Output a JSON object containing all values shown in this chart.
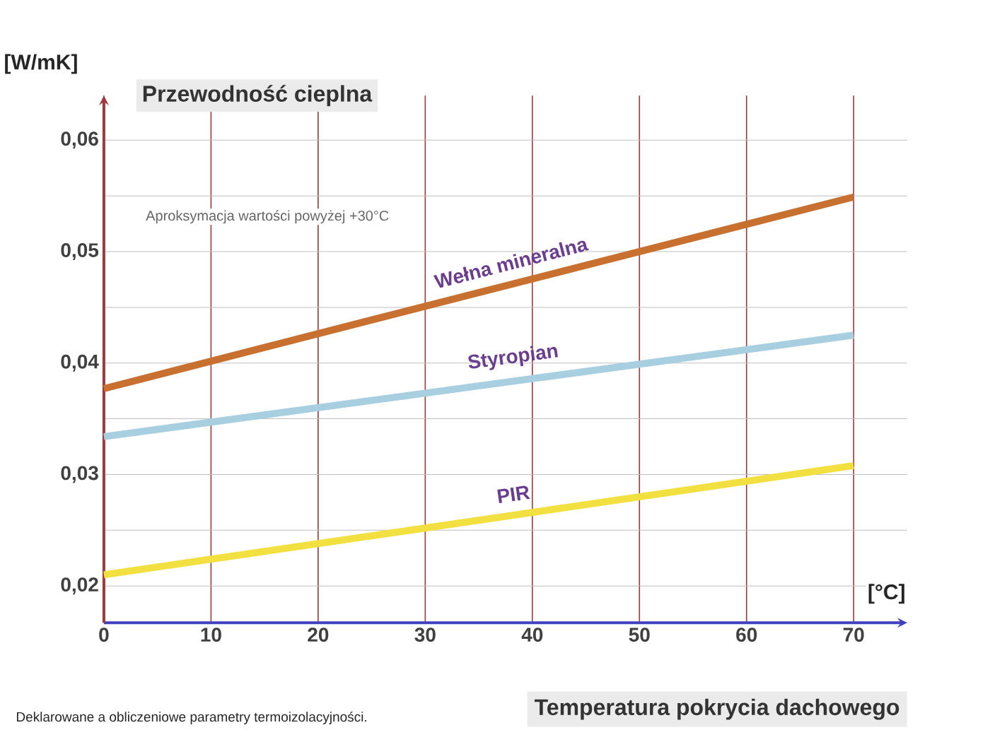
{
  "chart_data": {
    "type": "line",
    "ylabel": "Przewodność cieplna",
    "xlabel": "Temperatura pokrycia dachowego",
    "annotations": [
      "[W/mK]",
      "[°C]",
      "Aproksymacja wartości powyżej +30°C",
      "Deklarowane a obliczeniowe parametry termoizolacyjności."
    ],
    "series": [
      {
        "name": "Wełna mineralna",
        "color": "#c8702f",
        "x": [
          0,
          30,
          70
        ],
        "values": [
          0.0377,
          0.0451,
          0.0549
        ]
      },
      {
        "name": "Styropian",
        "color": "#a8cfe0",
        "x": [
          0,
          30,
          70
        ],
        "values": [
          0.0334,
          0.0373,
          0.0425
        ]
      },
      {
        "name": "PIR",
        "color": "#f2e040",
        "x": [
          0,
          30,
          70
        ],
        "values": [
          0.021,
          0.0252,
          0.0308
        ]
      }
    ],
    "xlim": [
      0,
      75
    ],
    "ylim": [
      0.0167,
      0.064
    ],
    "xticks": [
      0,
      10,
      20,
      30,
      40,
      50,
      60,
      70
    ],
    "yticks": [
      {
        "value": 0.02,
        "label": "0,02"
      },
      {
        "value": 0.03,
        "label": "0,03"
      },
      {
        "value": 0.04,
        "label": "0,04"
      },
      {
        "value": 0.05,
        "label": "0,05"
      },
      {
        "value": 0.06,
        "label": "0,06"
      }
    ],
    "grid": true,
    "marker": "none",
    "line_style": "solid"
  }
}
